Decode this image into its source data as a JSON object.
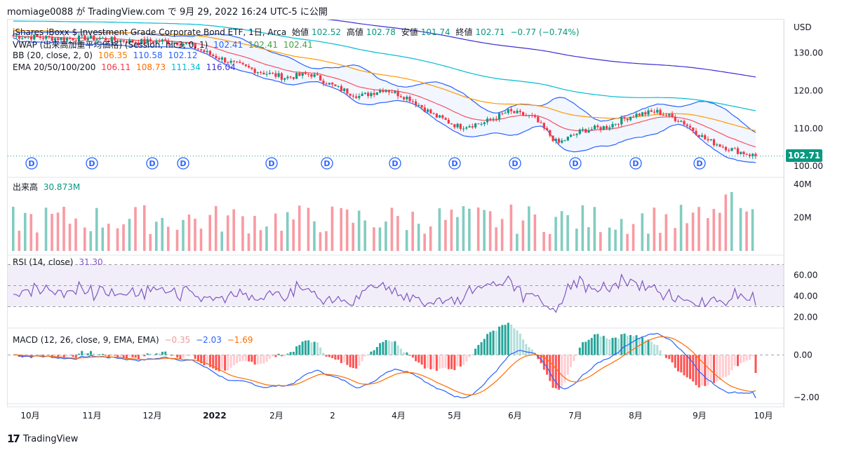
{
  "header": {
    "text": "momiage0088 が TradingView.com で 9月 29, 2022 16:24 UTC-5 に公開"
  },
  "currency": "USD",
  "legend": {
    "symbol": "iShares iBoxx $ Investment Grade Corporate Bond ETF, 1日, Arca",
    "open_label": "始値",
    "open": "102.52",
    "high_label": "高値",
    "high": "102.78",
    "low_label": "安値",
    "low": "101.74",
    "close_label": "終値",
    "close": "102.71",
    "change": "−0.77 (−0.74%)",
    "vwap_label": "VWAP (出来高加重平均価格) (Session, hlc3, 0, 1)",
    "vwap_values": [
      "102.41",
      "102.41",
      "102.41"
    ],
    "bb_label": "BB (20, close, 2, 0)",
    "bb_values": [
      "106.35",
      "110.58",
      "102.12"
    ],
    "ema_label": "EMA 20/50/100/200",
    "ema_values": [
      "106.11",
      "108.73",
      "111.34",
      "116.04"
    ],
    "volume_label": "出来高",
    "volume_value": "30.873M",
    "rsi_label": "RSI (14, close)",
    "rsi_value": "31.30",
    "macd_label": "MACD (12, 26, close, 9, EMA, EMA)",
    "macd_values": [
      "−0.35",
      "−2.03",
      "−1.69"
    ]
  },
  "price_tag": "102.71",
  "footer": {
    "brand": "TradingView",
    "logo": "17"
  },
  "colors": {
    "up": "#089981",
    "down": "#f23645",
    "bb": "#2962ff",
    "ema20": "#f7525f",
    "ema50": "#ff9800",
    "ema100": "#00bcd4",
    "ema200": "#3f2fd6",
    "rsi": "#7e57c2",
    "macd": "#2962ff",
    "signal": "#ff6d00"
  },
  "chart_data": {
    "type": "candlestick",
    "x_labels": [
      "10月",
      "11月",
      "12月",
      "2022",
      "2月",
      "2",
      "4月",
      "5月",
      "6月",
      "7月",
      "8月",
      "9月",
      "10月"
    ],
    "price_axis": {
      "ticks": [
        "130.00",
        "120.00",
        "110.00",
        "100.00"
      ],
      "range": [
        98,
        137
      ]
    },
    "close_approx": [
      134.5,
      134.2,
      133.8,
      134.0,
      133.5,
      133.0,
      133.2,
      132.5,
      129.5,
      127.0,
      125.0,
      123.5,
      124.5,
      121.0,
      118.5,
      120.5,
      118.0,
      113.5,
      110.5,
      111.5,
      114.5,
      113.0,
      106.0,
      109.5,
      110.5,
      113.5,
      114.5,
      112.0,
      107.0,
      104.5,
      102.71
    ],
    "ema_labels": [
      "EMA20",
      "EMA50",
      "EMA100",
      "EMA200"
    ],
    "last_ema": [
      106.11,
      108.73,
      111.34,
      116.04
    ],
    "last_bb": [
      106.35,
      110.58,
      102.12
    ],
    "dividends_marker": "D",
    "dividend_count": 12,
    "volume_axis": [
      "40M",
      "20M"
    ],
    "rsi_axis": [
      "60.00",
      "40.00",
      "20.00"
    ],
    "rsi_band": [
      30,
      70
    ],
    "rsi_last": 31.3,
    "macd_axis": [
      "0.00",
      "−2.00"
    ],
    "macd_last": {
      "hist": -0.35,
      "macd": -2.03,
      "signal": -1.69
    }
  }
}
